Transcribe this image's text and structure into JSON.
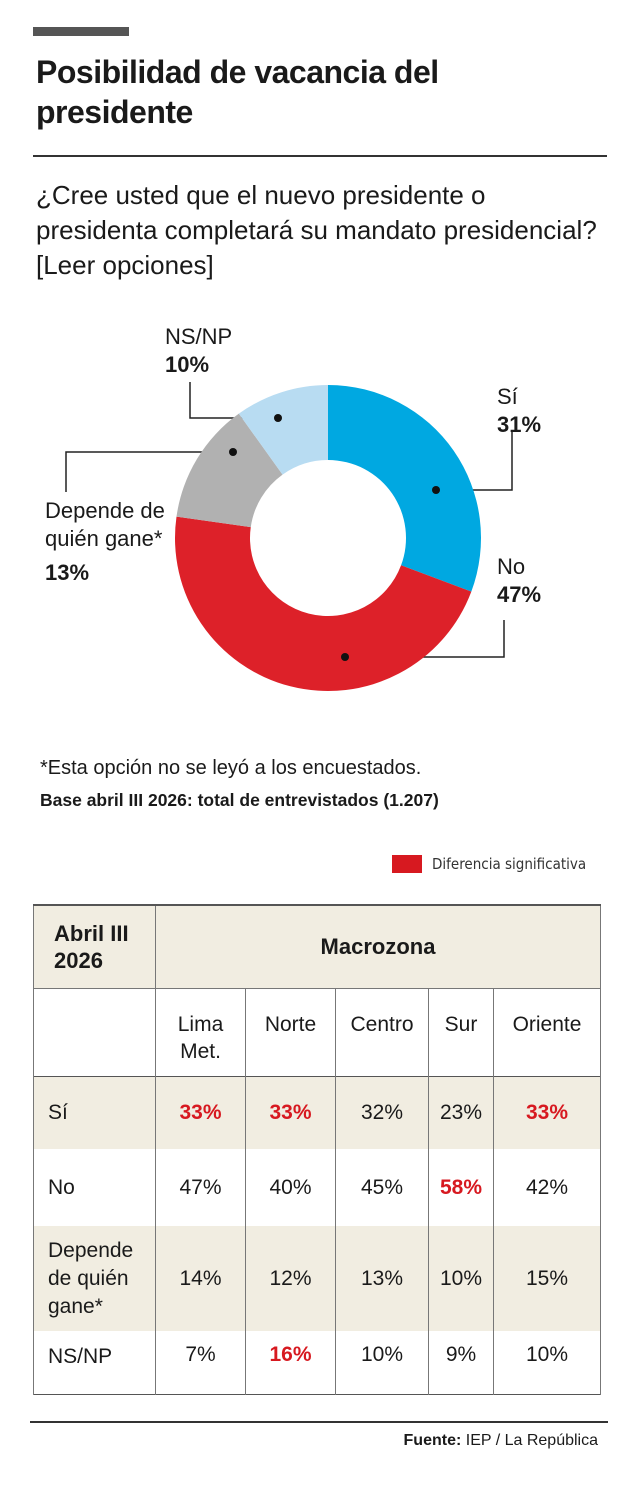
{
  "header": {
    "title": "Posibilidad de vacancia del presidente",
    "question": "¿Cree usted que el nuevo presidente o presidenta completará su mandato presidencial? [Leer opciones]"
  },
  "chart_data": {
    "type": "donut",
    "categories": [
      "Sí",
      "No",
      "Depende de quién gane*",
      "NS/NP"
    ],
    "values": [
      31,
      47,
      13,
      10
    ],
    "value_labels": [
      "31%",
      "47%",
      "13%",
      "10%"
    ],
    "colors": [
      "#00a8e1",
      "#dd2129",
      "#b1b1b1",
      "#b8dcf2"
    ]
  },
  "notes": {
    "footnote": "*Esta opción no se leyó a los encuestados.",
    "base": "Base abril III 2026: total de entrevistados (1.207)"
  },
  "legend": {
    "label": "Diferencia significativa",
    "color": "#d71920"
  },
  "table": {
    "corner": "Abril III 2026",
    "group": "Macrozona",
    "columns": [
      "Lima Met.",
      "Norte",
      "Centro",
      "Sur",
      "Oriente"
    ],
    "rows": [
      {
        "label": "Sí",
        "cells": [
          "33%",
          "33%",
          "32%",
          "23%",
          "33%"
        ],
        "significant": [
          true,
          true,
          false,
          false,
          true
        ]
      },
      {
        "label": "No",
        "cells": [
          "47%",
          "40%",
          "45%",
          "58%",
          "42%"
        ],
        "significant": [
          false,
          false,
          false,
          true,
          false
        ]
      },
      {
        "label": "Depende de quién gane*",
        "cells": [
          "14%",
          "12%",
          "13%",
          "10%",
          "15%"
        ],
        "significant": [
          false,
          false,
          false,
          false,
          false
        ]
      },
      {
        "label": "NS/NP",
        "cells": [
          "7%",
          "16%",
          "10%",
          "9%",
          "10%"
        ],
        "significant": [
          false,
          true,
          false,
          false,
          false
        ]
      }
    ]
  },
  "source": {
    "label": "Fuente:",
    "text": "IEP / La República"
  }
}
